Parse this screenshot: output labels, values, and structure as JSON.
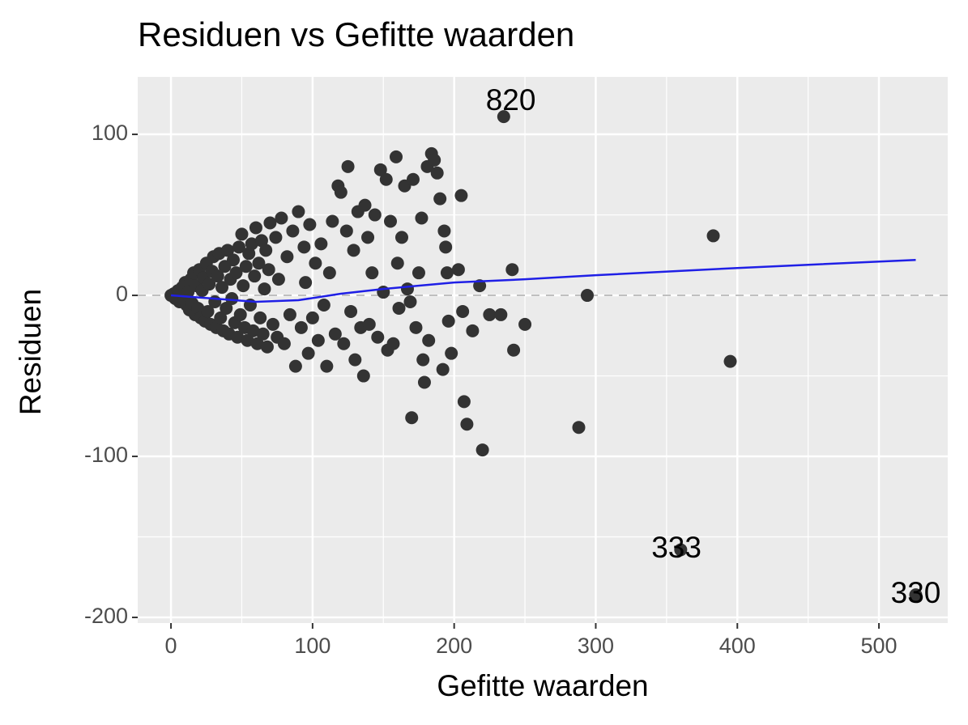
{
  "chart_data": {
    "type": "scatter",
    "title": "Residuen vs Gefitte waarden",
    "x_label": "Gefitte waarden",
    "y_label": "Residuen",
    "xlim": [
      -23.5,
      548.6
    ],
    "ylim": [
      -203.5,
      135.7
    ],
    "xticks": [
      0,
      100,
      200,
      300,
      400,
      500
    ],
    "yticks": [
      -200,
      -100,
      0,
      100
    ],
    "x_minor_grid": [
      50,
      150,
      250,
      350,
      450
    ],
    "y_minor_grid": [
      -150,
      -50,
      50
    ],
    "grid": true,
    "hline": 0,
    "color": "#333333",
    "x": [
      0,
      2,
      3,
      5,
      6,
      8,
      9,
      10,
      11,
      12,
      13,
      14,
      15,
      16,
      17,
      18,
      19,
      20,
      21,
      22,
      23,
      24,
      25,
      26,
      27,
      28,
      29,
      30,
      31,
      32,
      33,
      34,
      35,
      36,
      37,
      38,
      39,
      40,
      41,
      42,
      43,
      44,
      45,
      46,
      47,
      48,
      49,
      50,
      51,
      52,
      53,
      54,
      55,
      56,
      57,
      58,
      59,
      60,
      61,
      62,
      63,
      64,
      65,
      66,
      67,
      68,
      69,
      70,
      72,
      74,
      75,
      76,
      78,
      80,
      82,
      84,
      86,
      88,
      90,
      92,
      94,
      95,
      97,
      98,
      100,
      102,
      104,
      106,
      108,
      110,
      112,
      114,
      116,
      118,
      120,
      122,
      124,
      125,
      127,
      129,
      130,
      132,
      134,
      136,
      137,
      139,
      140,
      142,
      144,
      146,
      148,
      150,
      152,
      153,
      155,
      157,
      159,
      160,
      161,
      163,
      165,
      167,
      169,
      170,
      171,
      173,
      175,
      177,
      178,
      179,
      181,
      182,
      184,
      186,
      188,
      190,
      192,
      193,
      194,
      195,
      196,
      198,
      203,
      205,
      206,
      207,
      209,
      213,
      218,
      220,
      225,
      233,
      235,
      241,
      242,
      250,
      288,
      294,
      383,
      395,
      360,
      526
    ],
    "y": [
      0,
      1,
      -2,
      3,
      -4,
      5,
      -3,
      8,
      -6,
      2,
      -9,
      10,
      -5,
      14,
      -12,
      6,
      -8,
      16,
      -14,
      3,
      11,
      -16,
      20,
      -10,
      7,
      -18,
      15,
      24,
      -4,
      -20,
      12,
      26,
      -14,
      5,
      -22,
      18,
      -8,
      28,
      -24,
      10,
      -2,
      22,
      -17,
      14,
      -26,
      30,
      -12,
      38,
      6,
      -20,
      18,
      -28,
      26,
      -6,
      32,
      -22,
      12,
      42,
      -30,
      20,
      -14,
      34,
      -24,
      4,
      28,
      -32,
      16,
      45,
      -18,
      36,
      -26,
      10,
      48,
      -30,
      24,
      -12,
      40,
      -44,
      52,
      -20,
      30,
      8,
      -36,
      44,
      -14,
      20,
      -28,
      32,
      -6,
      -44,
      14,
      46,
      -24,
      68,
      64,
      -30,
      40,
      80,
      -10,
      28,
      -40,
      52,
      -20,
      -50,
      56,
      36,
      -18,
      14,
      50,
      -26,
      78,
      2,
      72,
      -34,
      46,
      -30,
      86,
      20,
      -8,
      36,
      68,
      4,
      -4,
      -76,
      72,
      -20,
      14,
      48,
      -40,
      -54,
      80,
      -28,
      88,
      84,
      76,
      60,
      -46,
      40,
      30,
      14,
      -16,
      -36,
      16,
      62,
      -10,
      -66,
      -80,
      -22,
      6,
      -96,
      -12,
      -12,
      111,
      16,
      -34,
      -18,
      -82,
      0,
      37,
      -41,
      -158,
      -186
    ],
    "smooth": {
      "color": "#1f1fe6",
      "x": [
        0,
        30,
        60,
        90,
        120,
        150,
        200,
        250,
        300,
        400,
        526
      ],
      "y": [
        0,
        -2,
        -4,
        -3,
        1,
        4,
        8,
        10,
        12.5,
        17,
        22
      ]
    },
    "annotations": [
      {
        "text": "820",
        "x": 240,
        "y": 120
      },
      {
        "text": "333",
        "x": 357,
        "y": -158
      },
      {
        "text": "330",
        "x": 526,
        "y": -186
      }
    ]
  }
}
